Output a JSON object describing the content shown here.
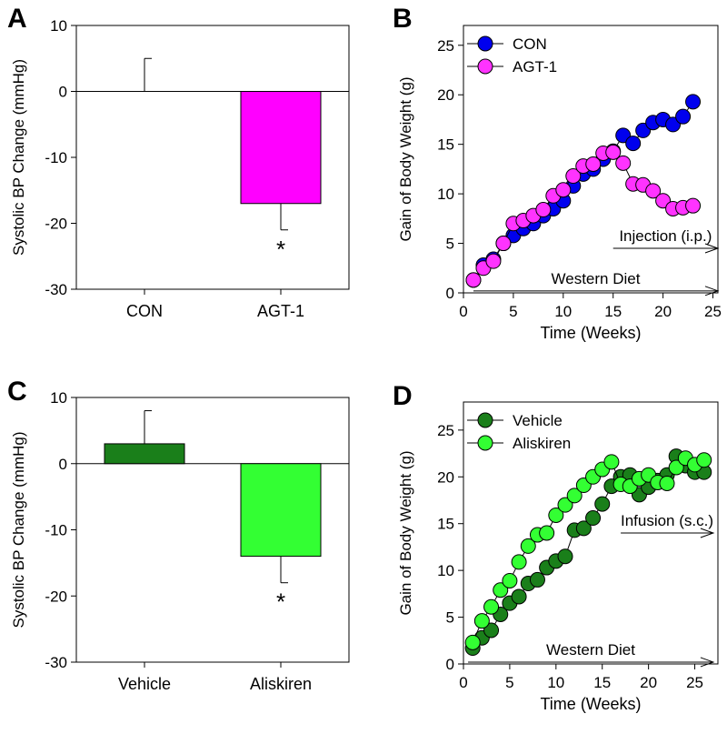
{
  "chart_data": [
    {
      "panel": "A",
      "type": "bar",
      "categories": [
        "CON",
        "AGT-1"
      ],
      "values": [
        0,
        -17
      ],
      "errors": [
        5,
        4
      ],
      "colors": [
        "#ff00ff",
        "#ff00ff"
      ],
      "ylabel": "Systolic BP Change (mmHg)",
      "ylim": [
        -30,
        10
      ],
      "yticks": [
        10,
        0,
        -10,
        -20,
        -30
      ],
      "annotations": [
        "",
        "*"
      ]
    },
    {
      "panel": "B",
      "type": "line",
      "xlabel": "Time (Weeks)",
      "ylabel": "Gain of Body Weight (g)",
      "xlim": [
        0,
        25.5
      ],
      "ylim": [
        0,
        27
      ],
      "xticks": [
        0,
        5,
        10,
        15,
        20,
        25
      ],
      "yticks": [
        0,
        5,
        10,
        15,
        20,
        25
      ],
      "legend": "top-left",
      "series": [
        {
          "name": "CON",
          "color": "#0000ee",
          "x": [
            1,
            2,
            3,
            4,
            5,
            6,
            7,
            8,
            9,
            10,
            11,
            12,
            13,
            14,
            15,
            16,
            17,
            18,
            19,
            20,
            21,
            22,
            23
          ],
          "values": [
            1.3,
            2.8,
            3.4,
            5,
            5.8,
            6.5,
            7,
            7.8,
            8.5,
            9.3,
            10.8,
            12,
            12.5,
            13.5,
            14.3,
            15.9,
            15.1,
            16.4,
            17.2,
            17.5,
            17,
            17.8,
            19.3
          ]
        },
        {
          "name": "AGT-1",
          "color": "#ff33ff",
          "x": [
            1,
            2,
            3,
            4,
            5,
            6,
            7,
            8,
            9,
            10,
            11,
            12,
            13,
            14,
            15,
            16,
            17,
            18,
            19,
            20,
            21,
            22,
            23
          ],
          "values": [
            1.3,
            2.5,
            3.2,
            5,
            7,
            7.3,
            7.8,
            8.4,
            9.8,
            10.4,
            11.8,
            12.8,
            13,
            14.1,
            14.2,
            13.1,
            11,
            10.9,
            10.3,
            9.3,
            8.5,
            8.6,
            8.8
          ]
        }
      ],
      "arrows": [
        {
          "label": "Western Diet",
          "from": 1,
          "to": 25.5,
          "y": 0.2
        },
        {
          "label": "Injection (i.p.)",
          "from": 15,
          "to": 25.5,
          "y": 4.5
        }
      ]
    },
    {
      "panel": "C",
      "type": "bar",
      "categories": [
        "Vehicle",
        "Aliskiren"
      ],
      "values": [
        3,
        -14
      ],
      "errors": [
        5,
        4
      ],
      "colors": [
        "#1a7f1a",
        "#33ff33"
      ],
      "ylabel": "Systolic BP Change (mmHg)",
      "ylim": [
        -30,
        10
      ],
      "yticks": [
        10,
        0,
        -10,
        -20,
        -30
      ],
      "annotations": [
        "",
        "*"
      ]
    },
    {
      "panel": "D",
      "type": "line",
      "xlabel": "Time (Weeks)",
      "ylabel": "Gain of Body Weight (g)",
      "xlim": [
        0,
        27.5
      ],
      "ylim": [
        0,
        28
      ],
      "xticks": [
        0,
        5,
        10,
        15,
        20,
        25
      ],
      "yticks": [
        0,
        5,
        10,
        15,
        20,
        25
      ],
      "legend": "top-left",
      "series": [
        {
          "name": "Vehicle",
          "color": "#1a7f1a",
          "x": [
            1,
            2,
            3,
            4,
            5,
            6,
            7,
            8,
            9,
            10,
            11,
            12,
            13,
            14,
            15,
            16,
            17,
            18,
            19,
            20,
            21,
            22,
            23,
            24,
            25,
            26
          ],
          "values": [
            1.7,
            2.8,
            3.6,
            5.3,
            6.5,
            7.2,
            8.6,
            9,
            10.3,
            11,
            11.5,
            14.3,
            14.5,
            15.6,
            17.1,
            19,
            20,
            20.2,
            18.1,
            18.9,
            19.6,
            20.2,
            22.2,
            21.2,
            20.5,
            20.5
          ]
        },
        {
          "name": "Aliskiren",
          "color": "#33ff33",
          "x": [
            1,
            2,
            3,
            4,
            5,
            6,
            7,
            8,
            9,
            10,
            11,
            12,
            13,
            14,
            15,
            16,
            17,
            18,
            19,
            20,
            21,
            22,
            23,
            24,
            25,
            26
          ],
          "values": [
            2.3,
            4.6,
            6.1,
            7.9,
            8.9,
            10.9,
            12.6,
            13.8,
            14,
            15.9,
            17,
            18,
            19.1,
            20,
            20.8,
            21.6,
            19.2,
            19,
            19.8,
            20.2,
            19.4,
            19.3,
            21,
            22,
            21.3,
            21.8
          ]
        }
      ],
      "arrows": [
        {
          "label": "Western Diet",
          "from": 0.5,
          "to": 27,
          "y": 0.2
        },
        {
          "label": "Infusion (s.c.)",
          "from": 17,
          "to": 27,
          "y": 14
        }
      ]
    }
  ],
  "panel_labels": [
    "A",
    "B",
    "C",
    "D"
  ]
}
